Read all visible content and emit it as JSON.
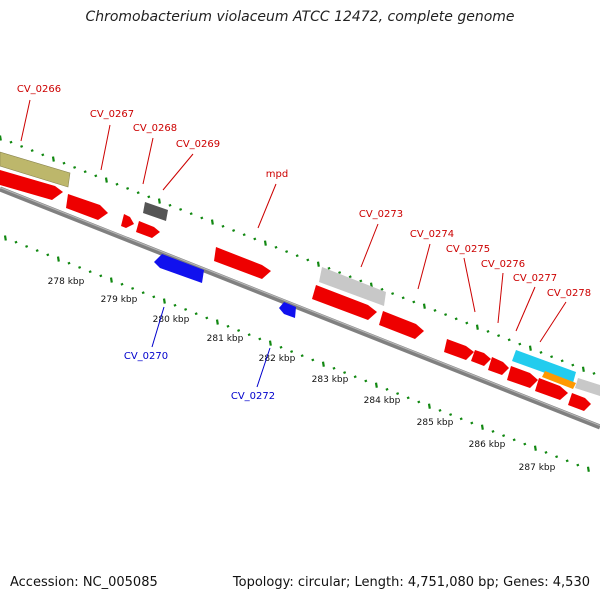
{
  "title": "Chromobacterium violaceum ATCC 12472, complete genome",
  "footer": {
    "accession": "Accession: NC_005085",
    "topology": "Topology: circular; Length: 4,751,080 bp; Genes: 4,530"
  },
  "colors": {
    "forward_label": "#cc0000",
    "reverse_label": "#0000cc",
    "gene_red": "#ee0000",
    "gene_blue": "#1111ee",
    "gene_olive": "#bdb76b",
    "gene_gray": "#c8c8c8",
    "gene_dark": "#555555",
    "gene_cyan": "#22ccee",
    "gene_orange": "#ff9900",
    "backbone": "#808080",
    "tick_green": "#118811"
  },
  "scale_labels": [
    "278 kbp",
    "279 kbp",
    "280 kbp",
    "281 kbp",
    "282 kbp",
    "283 kbp",
    "284 kbp",
    "285 kbp",
    "286 kbp",
    "287 kbp"
  ],
  "forward_labels": [
    "CV_0266",
    "CV_0267",
    "CV_0268",
    "CV_0269",
    "mpd",
    "CV_0273",
    "CV_0274",
    "CV_0275",
    "CV_0276",
    "CV_0277",
    "CV_0278"
  ],
  "reverse_labels": [
    "CV_0270",
    "CV_0272"
  ]
}
